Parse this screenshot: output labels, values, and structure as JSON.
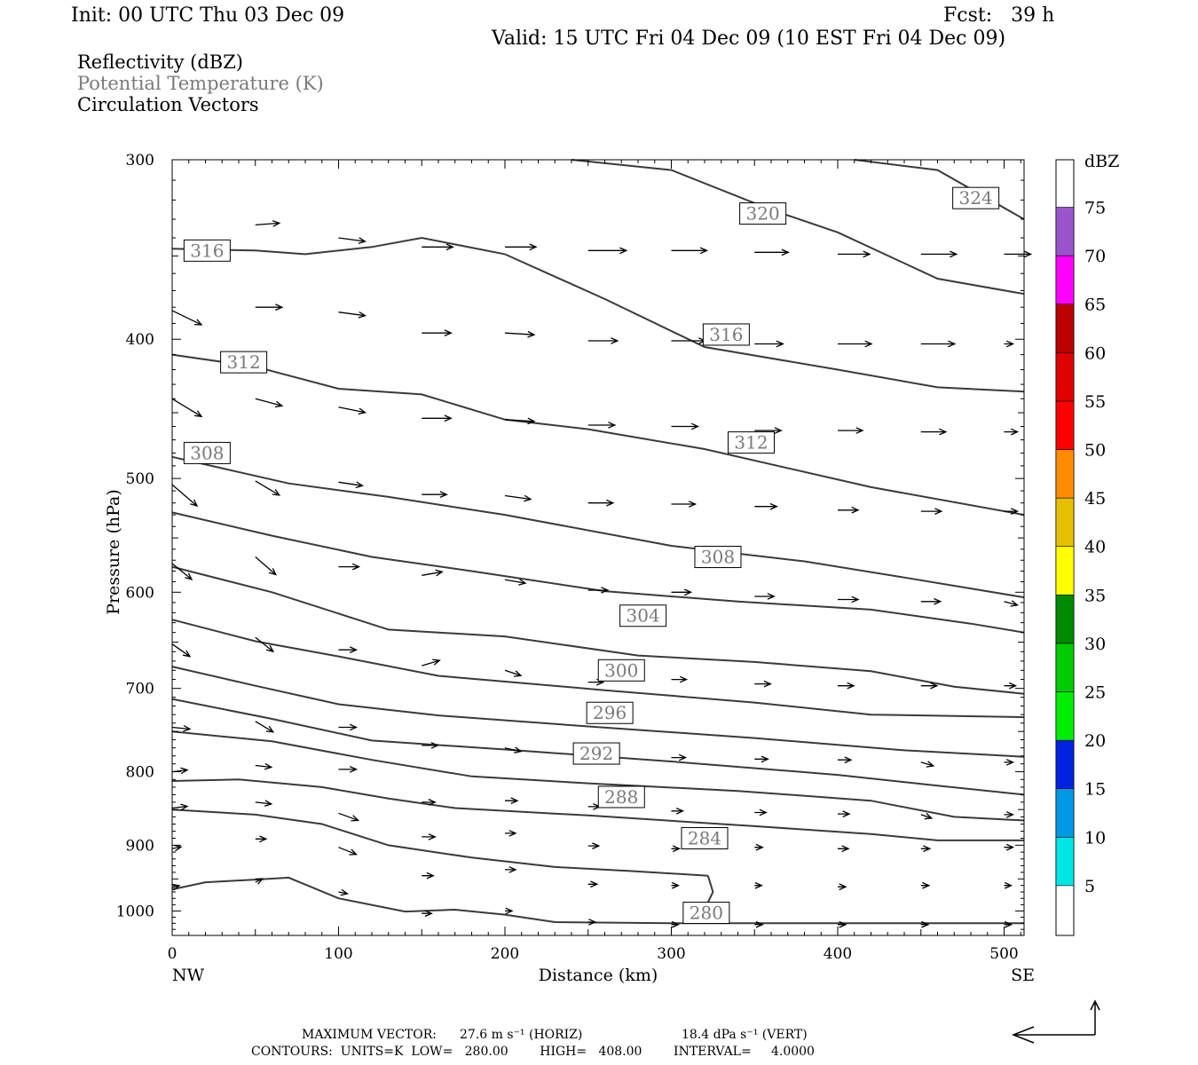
{
  "header": {
    "init": "Init: 00 UTC Thu 03 Dec 09",
    "fcst": "Fcst:   39 h",
    "valid": "Valid: 15 UTC Fri 04 Dec 09 (10 EST Fri 04 Dec 09)"
  },
  "fields": {
    "reflectivity": "Reflectivity (dBZ)",
    "theta": "Potential Temperature (K)",
    "vectors": "Circulation Vectors"
  },
  "colors": {
    "theta_contour": "#3a3a3a",
    "theta_label_text": "#7a7a7a",
    "vector": "#000000"
  },
  "chart_data": {
    "type": "line",
    "xlabel": "Distance (km)",
    "ylabel": "Pressure (hPa)",
    "xlim": [
      0,
      512
    ],
    "ylim": [
      1040,
      300
    ],
    "y_scale": "log",
    "x_ticks": [
      "0",
      "100",
      "200",
      "300",
      "400",
      "500"
    ],
    "y_ticks": [
      "300",
      "400",
      "500",
      "600",
      "700",
      "800",
      "900",
      "1000"
    ],
    "x_end_labels": {
      "left": "NW",
      "right": "SE"
    },
    "contours": [
      {
        "value": 280,
        "label": "280",
        "points": [
          [
            0,
            966
          ],
          [
            20,
            955
          ],
          [
            50,
            951
          ],
          [
            70,
            948
          ],
          [
            100,
            980
          ],
          [
            140,
            1001
          ],
          [
            170,
            998
          ],
          [
            200,
            1006
          ],
          [
            230,
            1018
          ],
          [
            300,
            1020
          ],
          [
            512,
            1020
          ]
        ]
      },
      {
        "value": 284,
        "label": "284",
        "points": [
          [
            0,
            850
          ],
          [
            50,
            857
          ],
          [
            90,
            870
          ],
          [
            130,
            900
          ],
          [
            180,
            918
          ],
          [
            230,
            932
          ],
          [
            275,
            938
          ],
          [
            322,
            945
          ]
        ]
      },
      {
        "value": 284,
        "label": "284",
        "points": [
          [
            322,
            945
          ],
          [
            325,
            970
          ],
          [
            316,
            1020
          ]
        ]
      },
      {
        "value": 288,
        "label": "288",
        "points": [
          [
            0,
            812
          ],
          [
            40,
            810
          ],
          [
            90,
            820
          ],
          [
            130,
            835
          ],
          [
            170,
            848
          ],
          [
            250,
            858
          ],
          [
            350,
            873
          ],
          [
            420,
            884
          ],
          [
            460,
            893
          ],
          [
            512,
            893
          ]
        ]
      },
      {
        "value": 292,
        "label": "292",
        "points": [
          [
            0,
            750
          ],
          [
            60,
            762
          ],
          [
            120,
            785
          ],
          [
            180,
            806
          ],
          [
            250,
            815
          ],
          [
            340,
            825
          ],
          [
            420,
            838
          ],
          [
            470,
            860
          ],
          [
            512,
            865
          ]
        ]
      },
      {
        "value": 296,
        "label": "296",
        "points": [
          [
            0,
            712
          ],
          [
            60,
            735
          ],
          [
            120,
            761
          ],
          [
            200,
            772
          ],
          [
            300,
            787
          ],
          [
            400,
            804
          ],
          [
            460,
            818
          ],
          [
            512,
            830
          ]
        ]
      },
      {
        "value": 300,
        "label": "300",
        "points": [
          [
            0,
            676
          ],
          [
            50,
            697
          ],
          [
            100,
            718
          ],
          [
            160,
            731
          ],
          [
            250,
            744
          ],
          [
            350,
            758
          ],
          [
            440,
            773
          ],
          [
            512,
            781
          ]
        ]
      },
      {
        "value": 304,
        "label": "304",
        "points": [
          [
            0,
            627
          ],
          [
            50,
            649
          ],
          [
            100,
            665
          ],
          [
            160,
            686
          ],
          [
            260,
            702
          ],
          [
            350,
            716
          ],
          [
            420,
            730
          ],
          [
            512,
            733
          ]
        ]
      },
      {
        "value": 308,
        "label": "308",
        "points": [
          [
            0,
            576
          ],
          [
            60,
            600
          ],
          [
            130,
            637
          ],
          [
            200,
            644
          ],
          [
            280,
            664
          ],
          [
            350,
            671
          ],
          [
            420,
            681
          ],
          [
            470,
            698
          ],
          [
            512,
            706
          ]
        ]
      },
      {
        "value": 312,
        "label": "312",
        "points": [
          [
            0,
            528
          ],
          [
            60,
            548
          ],
          [
            120,
            567
          ],
          [
            180,
            580
          ],
          [
            260,
            599
          ],
          [
            340,
            609
          ],
          [
            420,
            617
          ],
          [
            480,
            631
          ],
          [
            512,
            640
          ]
        ]
      },
      {
        "value": 312,
        "label": "312",
        "points": [
          [
            0,
            483
          ],
          [
            70,
            504
          ],
          [
            130,
            515
          ],
          [
            200,
            530
          ],
          [
            300,
            557
          ],
          [
            380,
            571
          ],
          [
            440,
            586
          ],
          [
            512,
            605
          ]
        ]
      },
      {
        "value": 316,
        "label": "316",
        "points": [
          [
            0,
            410
          ],
          [
            50,
            418
          ],
          [
            100,
            433
          ],
          [
            150,
            437
          ],
          [
            200,
            455
          ],
          [
            250,
            462
          ],
          [
            320,
            477
          ],
          [
            420,
            507
          ],
          [
            512,
            530
          ]
        ]
      },
      {
        "value": 320,
        "label": "320",
        "points": [
          [
            0,
            346
          ],
          [
            50,
            347
          ],
          [
            80,
            349
          ],
          [
            120,
            345
          ],
          [
            150,
            340
          ],
          [
            200,
            349
          ],
          [
            260,
            375
          ],
          [
            320,
            405
          ],
          [
            400,
            420
          ],
          [
            460,
            432
          ],
          [
            512,
            435
          ]
        ]
      },
      {
        "value": 320,
        "label": "320",
        "points": [
          [
            240,
            300
          ],
          [
            300,
            305
          ],
          [
            360,
            325
          ],
          [
            400,
            337
          ],
          [
            460,
            363
          ],
          [
            512,
            372
          ]
        ]
      },
      {
        "value": 324,
        "label": "324",
        "points": [
          [
            410,
            300
          ],
          [
            460,
            305
          ],
          [
            512,
            330
          ]
        ]
      }
    ],
    "contour_labels": [
      {
        "text": "316",
        "x": 21,
        "p": 347
      },
      {
        "text": "312",
        "x": 43,
        "p": 415
      },
      {
        "text": "308",
        "x": 21,
        "p": 480
      },
      {
        "text": "316",
        "x": 333,
        "p": 397
      },
      {
        "text": "320",
        "x": 355,
        "p": 327
      },
      {
        "text": "324",
        "x": 483,
        "p": 319
      },
      {
        "text": "312",
        "x": 348,
        "p": 472
      },
      {
        "text": "308",
        "x": 328,
        "p": 567
      },
      {
        "text": "304",
        "x": 283,
        "p": 623
      },
      {
        "text": "300",
        "x": 270,
        "p": 680
      },
      {
        "text": "296",
        "x": 263,
        "p": 728
      },
      {
        "text": "292",
        "x": 255,
        "p": 777
      },
      {
        "text": "288",
        "x": 270,
        "p": 833
      },
      {
        "text": "284",
        "x": 320,
        "p": 890
      },
      {
        "text": "280",
        "x": 321,
        "p": 1003
      }
    ],
    "vectors": [
      [
        50,
        333,
        27,
        -2
      ],
      [
        100,
        340,
        30,
        4
      ],
      [
        150,
        345,
        35,
        0
      ],
      [
        200,
        345,
        35,
        0
      ],
      [
        250,
        347,
        43,
        0
      ],
      [
        300,
        347,
        40,
        0
      ],
      [
        350,
        348,
        38,
        0
      ],
      [
        400,
        349,
        36,
        0
      ],
      [
        450,
        349,
        40,
        0
      ],
      [
        500,
        349,
        30,
        0
      ],
      [
        0,
        382,
        33,
        16
      ],
      [
        50,
        380,
        30,
        0
      ],
      [
        100,
        383,
        30,
        4
      ],
      [
        150,
        396,
        33,
        0
      ],
      [
        200,
        396,
        33,
        2
      ],
      [
        250,
        401,
        33,
        0
      ],
      [
        300,
        401,
        38,
        0
      ],
      [
        350,
        403,
        32,
        0
      ],
      [
        400,
        403,
        38,
        0
      ],
      [
        450,
        403,
        38,
        0
      ],
      [
        500,
        403,
        10,
        0
      ],
      [
        0,
        440,
        33,
        20
      ],
      [
        50,
        440,
        30,
        8
      ],
      [
        100,
        446,
        30,
        6
      ],
      [
        150,
        454,
        33,
        0
      ],
      [
        200,
        455,
        33,
        2
      ],
      [
        250,
        459,
        30,
        0
      ],
      [
        300,
        460,
        30,
        0
      ],
      [
        350,
        463,
        30,
        0
      ],
      [
        400,
        463,
        28,
        0
      ],
      [
        450,
        464,
        28,
        0
      ],
      [
        500,
        464,
        15,
        0
      ],
      [
        0,
        505,
        28,
        24
      ],
      [
        50,
        502,
        27,
        16
      ],
      [
        100,
        503,
        27,
        4
      ],
      [
        150,
        513,
        28,
        0
      ],
      [
        200,
        514,
        29,
        4
      ],
      [
        250,
        520,
        28,
        0
      ],
      [
        300,
        521,
        27,
        0
      ],
      [
        350,
        523,
        25,
        0
      ],
      [
        400,
        526,
        23,
        0
      ],
      [
        450,
        527,
        23,
        0
      ],
      [
        500,
        527,
        15,
        0
      ],
      [
        0,
        573,
        22,
        18
      ],
      [
        50,
        567,
        23,
        20
      ],
      [
        100,
        576,
        23,
        0
      ],
      [
        150,
        584,
        23,
        -4
      ],
      [
        200,
        588,
        23,
        4
      ],
      [
        250,
        598,
        22,
        0
      ],
      [
        300,
        600,
        22,
        0
      ],
      [
        350,
        604,
        22,
        0
      ],
      [
        400,
        607,
        23,
        0
      ],
      [
        450,
        609,
        22,
        0
      ],
      [
        500,
        609,
        15,
        4
      ],
      [
        0,
        652,
        20,
        14
      ],
      [
        50,
        645,
        20,
        16
      ],
      [
        100,
        658,
        20,
        0
      ],
      [
        150,
        675,
        20,
        -6
      ],
      [
        200,
        680,
        18,
        6
      ],
      [
        250,
        693,
        17,
        0
      ],
      [
        300,
        690,
        17,
        0
      ],
      [
        350,
        695,
        18,
        0
      ],
      [
        400,
        697,
        18,
        0
      ],
      [
        450,
        697,
        18,
        0
      ],
      [
        500,
        697,
        13,
        0
      ],
      [
        0,
        745,
        20,
        2
      ],
      [
        50,
        738,
        20,
        12
      ],
      [
        100,
        745,
        20,
        0
      ],
      [
        150,
        767,
        18,
        0
      ],
      [
        200,
        770,
        18,
        4
      ],
      [
        250,
        774,
        16,
        0
      ],
      [
        300,
        782,
        16,
        0
      ],
      [
        350,
        784,
        15,
        0
      ],
      [
        400,
        785,
        15,
        0
      ],
      [
        450,
        788,
        14,
        4
      ],
      [
        500,
        788,
        10,
        0
      ],
      [
        0,
        800,
        17,
        -2
      ],
      [
        50,
        792,
        18,
        2
      ],
      [
        100,
        797,
        20,
        0
      ],
      [
        150,
        840,
        15,
        0
      ],
      [
        200,
        838,
        14,
        0
      ],
      [
        250,
        846,
        13,
        0
      ],
      [
        300,
        852,
        13,
        0
      ],
      [
        350,
        854,
        13,
        0
      ],
      [
        400,
        856,
        13,
        0
      ],
      [
        450,
        857,
        12,
        4
      ],
      [
        500,
        857,
        10,
        0
      ],
      [
        0,
        905,
        10,
        -2
      ],
      [
        50,
        891,
        12,
        0
      ],
      [
        100,
        903,
        20,
        8
      ],
      [
        150,
        888,
        15,
        0
      ],
      [
        200,
        883,
        12,
        0
      ],
      [
        250,
        901,
        12,
        0
      ],
      [
        300,
        905,
        9,
        0
      ],
      [
        350,
        903,
        9,
        0
      ],
      [
        400,
        905,
        12,
        0
      ],
      [
        450,
        905,
        10,
        0
      ],
      [
        500,
        903,
        10,
        0
      ],
      [
        0,
        848,
        17,
        -2
      ],
      [
        50,
        840,
        18,
        2
      ],
      [
        100,
        855,
        22,
        8
      ],
      [
        150,
        945,
        13,
        0
      ],
      [
        200,
        936,
        12,
        0
      ],
      [
        250,
        958,
        10,
        0
      ],
      [
        300,
        960,
        8,
        0
      ],
      [
        350,
        960,
        8,
        0
      ],
      [
        400,
        962,
        9,
        0
      ],
      [
        450,
        960,
        9,
        0
      ],
      [
        500,
        960,
        8,
        0
      ],
      [
        0,
        963,
        8,
        -2
      ],
      [
        50,
        955,
        8,
        -4
      ],
      [
        100,
        970,
        10,
        2
      ],
      [
        150,
        1004,
        11,
        0
      ],
      [
        200,
        1000,
        8,
        0
      ],
      [
        250,
        1018,
        8,
        0
      ],
      [
        300,
        1022,
        8,
        0
      ],
      [
        350,
        1022,
        9,
        0
      ],
      [
        400,
        1022,
        9,
        0
      ],
      [
        450,
        1022,
        8,
        0
      ],
      [
        500,
        1022,
        8,
        0
      ]
    ],
    "colorbar": {
      "title": "dBZ",
      "labels": [
        "5",
        "10",
        "15",
        "20",
        "25",
        "30",
        "35",
        "40",
        "45",
        "50",
        "55",
        "60",
        "65",
        "70",
        "75"
      ],
      "colors": [
        "#00e5e5",
        "#0099e6",
        "#0022e0",
        "#00ee00",
        "#00cc00",
        "#008a00",
        "#ffff00",
        "#e6c000",
        "#ff8c00",
        "#ff0000",
        "#e00000",
        "#bb0000",
        "#ff00ff",
        "#9955cc"
      ]
    }
  },
  "footer": {
    "max_vector_label": "MAXIMUM VECTOR:",
    "max_vector_horiz": "27.6 m s⁻¹ (HORIZ)",
    "max_vector_vert": "18.4 dPa s⁻¹ (VERT)",
    "contours": "CONTOURS:  UNITS=K  LOW=   280.00        HIGH=   408.00        INTERVAL=     4.0000"
  }
}
